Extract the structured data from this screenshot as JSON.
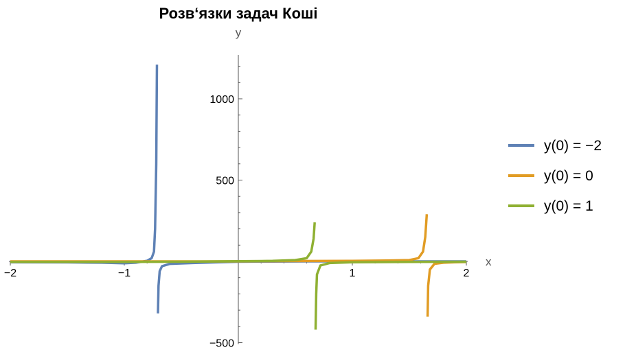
{
  "chart_data": {
    "type": "line",
    "title": "Розв‘язки задач Коші",
    "xlabel": "x",
    "ylabel": "y",
    "xlim": [
      -2,
      2
    ],
    "ylim": [
      -500,
      1250
    ],
    "x_ticks": [
      -2,
      -1,
      1,
      2
    ],
    "x_tick_labels": [
      "−2",
      "−1",
      "1",
      "2"
    ],
    "y_ticks": [
      -500,
      500,
      1000
    ],
    "y_tick_labels": [
      "−500",
      "500",
      "1000"
    ],
    "grid": false,
    "legend_position": "right",
    "series": [
      {
        "name": "y(0) = −2",
        "color": "#5e81b5",
        "segments": [
          [
            [
              -2,
              -5
            ],
            [
              -1.5,
              -6
            ],
            [
              -1.2,
              -8
            ],
            [
              -1.0,
              -12
            ],
            [
              -0.9,
              -8
            ],
            [
              -0.8,
              4
            ],
            [
              -0.76,
              20
            ],
            [
              -0.74,
              60
            ],
            [
              -0.73,
              200
            ],
            [
              -0.72,
              600
            ],
            [
              -0.714,
              1210
            ]
          ],
          [
            [
              -0.705,
              -320
            ],
            [
              -0.7,
              -150
            ],
            [
              -0.69,
              -60
            ],
            [
              -0.67,
              -30
            ],
            [
              -0.6,
              -15
            ],
            [
              -0.4,
              -10
            ],
            [
              -0.2,
              -6
            ],
            [
              0,
              -2
            ],
            [
              0.3,
              -1
            ],
            [
              0.6,
              0
            ],
            [
              1.0,
              0
            ],
            [
              1.5,
              0
            ],
            [
              2.0,
              0
            ]
          ]
        ]
      },
      {
        "name": "y(0) = 0",
        "color": "#e19c24",
        "segments": [
          [
            [
              -2,
              0
            ],
            [
              -1,
              0
            ],
            [
              0,
              0
            ],
            [
              0.5,
              2
            ],
            [
              1.0,
              3
            ],
            [
              1.3,
              5
            ],
            [
              1.5,
              8
            ],
            [
              1.58,
              20
            ],
            [
              1.62,
              60
            ],
            [
              1.64,
              150
            ],
            [
              1.653,
              290
            ]
          ],
          [
            [
              1.66,
              -340
            ],
            [
              1.665,
              -150
            ],
            [
              1.68,
              -50
            ],
            [
              1.72,
              -15
            ],
            [
              1.8,
              -8
            ],
            [
              1.9,
              -5
            ],
            [
              2.0,
              -4
            ]
          ]
        ]
      },
      {
        "name": "y(0) = 1",
        "color": "#8fb032",
        "segments": [
          [
            [
              -2,
              -3
            ],
            [
              -1.5,
              -3
            ],
            [
              -1.0,
              -3
            ],
            [
              -0.5,
              -2
            ],
            [
              0,
              1
            ],
            [
              0.3,
              3
            ],
            [
              0.5,
              8
            ],
            [
              0.6,
              20
            ],
            [
              0.64,
              60
            ],
            [
              0.66,
              140
            ],
            [
              0.67,
              240
            ]
          ],
          [
            [
              0.678,
              -420
            ],
            [
              0.683,
              -200
            ],
            [
              0.69,
              -80
            ],
            [
              0.72,
              -25
            ],
            [
              0.8,
              -10
            ],
            [
              1.0,
              -5
            ],
            [
              1.5,
              -3
            ],
            [
              2.0,
              -2
            ]
          ]
        ]
      }
    ]
  }
}
